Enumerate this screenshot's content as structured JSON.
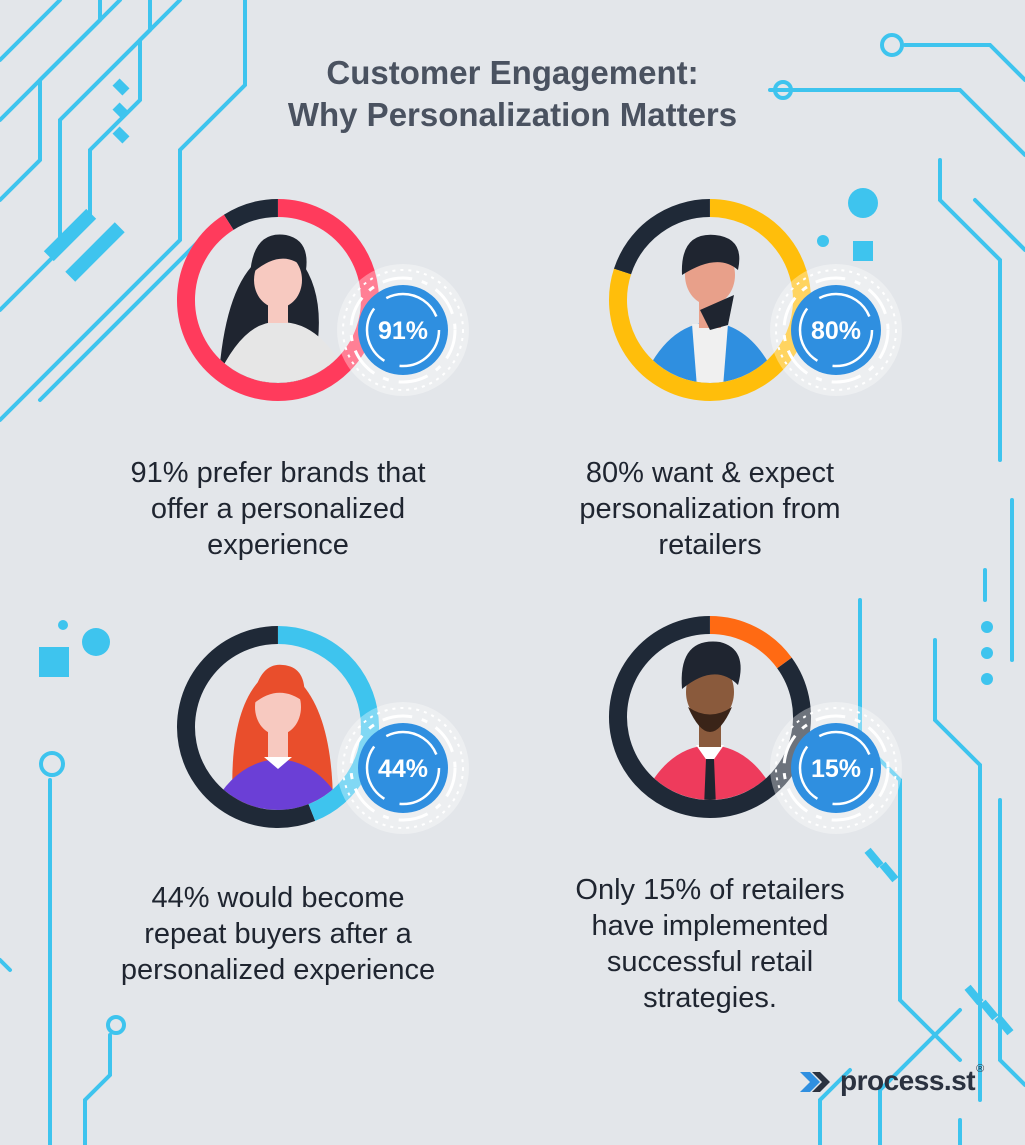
{
  "title": {
    "line1": "Customer Engagement:",
    "line2": "Why Personalization Matters"
  },
  "stats": [
    {
      "value": 91,
      "label": "91%",
      "lines": [
        "91% prefer brands that",
        "offer a personalized",
        "experience"
      ],
      "ring_color": "#ff3b5c",
      "avatar": "woman-black-hair-icon"
    },
    {
      "value": 80,
      "label": "80%",
      "lines": [
        "80% want & expect",
        "personalization from",
        "retailers"
      ],
      "ring_color": "#ffbe0b",
      "avatar": "man-blue-jacket-icon"
    },
    {
      "value": 44,
      "label": "44%",
      "lines": [
        "44% would become",
        "repeat buyers after a",
        "personalized experience"
      ],
      "ring_color": "#3ec4ee",
      "avatar": "woman-red-hair-icon"
    },
    {
      "value": 15,
      "label": "15%",
      "lines": [
        "Only 15% of retailers",
        "have implemented",
        "successful retail",
        "strategies."
      ],
      "ring_color": "#ff6a13",
      "avatar": "man-bearded-icon"
    }
  ],
  "colors": {
    "background": "#e3e6ea",
    "ring_track": "#1f2937",
    "badge": "#2f8fe0",
    "circuit": "#3ec4ee"
  },
  "logo": {
    "text": "process.st",
    "reg": "®",
    "icon": "process-street-chevron-icon"
  }
}
